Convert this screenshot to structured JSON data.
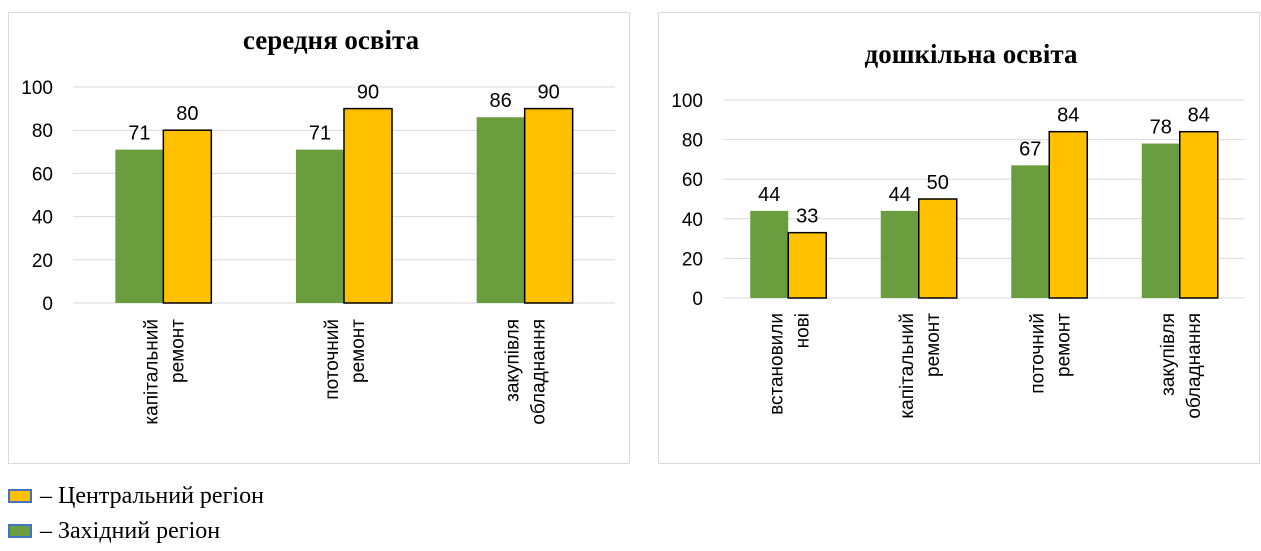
{
  "colors": {
    "western": "#6a9d3e",
    "central": "#ffc000",
    "grid": "#d9d9d9",
    "bar_border": "#000000"
  },
  "legend": [
    {
      "label": "– Центральний регіон",
      "color": "#ffc000"
    },
    {
      "label": "– Західний регіон",
      "color": "#6a9d3e"
    }
  ],
  "chart_data": [
    {
      "type": "bar",
      "title": "середня освіта",
      "categories": [
        [
          "капітальний",
          "ремонт"
        ],
        [
          "поточний",
          "ремонт"
        ],
        [
          "закупівля",
          "обладнання"
        ]
      ],
      "series": [
        {
          "values": [
            71,
            71,
            86
          ],
          "color": "#6a9d3e"
        },
        {
          "values": [
            80,
            90,
            90
          ],
          "color": "#ffc000"
        }
      ],
      "yticks": [
        "0",
        "20",
        "40",
        "60",
        "80",
        "100"
      ],
      "ylim": [
        0,
        100
      ],
      "grid": true
    },
    {
      "type": "bar",
      "title": "дошкільна освіта",
      "categories": [
        [
          "встановили",
          "нові"
        ],
        [
          "капітальний",
          "ремонт"
        ],
        [
          "поточний",
          "ремонт"
        ],
        [
          "закупівля",
          "обладнання"
        ]
      ],
      "series": [
        {
          "values": [
            44,
            44,
            67,
            78
          ],
          "color": "#6a9d3e"
        },
        {
          "values": [
            33,
            50,
            84,
            84
          ],
          "color": "#ffc000"
        }
      ],
      "yticks": [
        "0",
        "20",
        "40",
        "60",
        "80",
        "100"
      ],
      "ylim": [
        0,
        100
      ],
      "grid": true
    }
  ]
}
